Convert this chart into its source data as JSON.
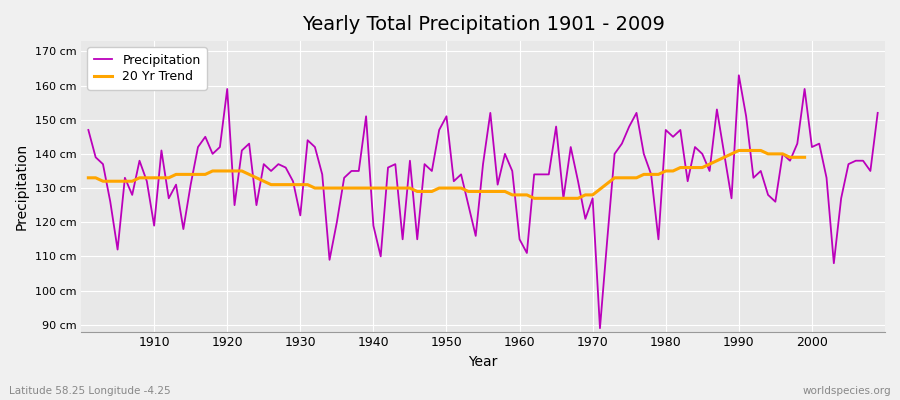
{
  "title": "Yearly Total Precipitation 1901 - 2009",
  "xlabel": "Year",
  "ylabel": "Precipitation",
  "bottom_left_label": "Latitude 58.25 Longitude -4.25",
  "bottom_right_label": "worldspecies.org",
  "background_color": "#f0f0f0",
  "plot_bg_color": "#e8e8e8",
  "precipitation_color": "#bb00bb",
  "trend_color": "#ffa500",
  "ylim": [
    88,
    173
  ],
  "yticks": [
    90,
    100,
    110,
    120,
    130,
    140,
    150,
    160,
    170
  ],
  "ytick_labels": [
    "90 cm",
    "100 cm",
    "110 cm",
    "120 cm",
    "130 cm",
    "140 cm",
    "150 cm",
    "160 cm",
    "170 cm"
  ],
  "xticks": [
    1910,
    1920,
    1930,
    1940,
    1950,
    1960,
    1970,
    1980,
    1990,
    2000
  ],
  "xlim": [
    1900,
    2010
  ],
  "years": [
    1901,
    1902,
    1903,
    1904,
    1905,
    1906,
    1907,
    1908,
    1909,
    1910,
    1911,
    1912,
    1913,
    1914,
    1915,
    1916,
    1917,
    1918,
    1919,
    1920,
    1921,
    1922,
    1923,
    1924,
    1925,
    1926,
    1927,
    1928,
    1929,
    1930,
    1931,
    1932,
    1933,
    1934,
    1935,
    1936,
    1937,
    1938,
    1939,
    1940,
    1941,
    1942,
    1943,
    1944,
    1945,
    1946,
    1947,
    1948,
    1949,
    1950,
    1951,
    1952,
    1953,
    1954,
    1955,
    1956,
    1957,
    1958,
    1959,
    1960,
    1961,
    1962,
    1963,
    1964,
    1965,
    1966,
    1967,
    1968,
    1969,
    1970,
    1971,
    1972,
    1973,
    1974,
    1975,
    1976,
    1977,
    1978,
    1979,
    1980,
    1981,
    1982,
    1983,
    1984,
    1985,
    1986,
    1987,
    1988,
    1989,
    1990,
    1991,
    1992,
    1993,
    1994,
    1995,
    1996,
    1997,
    1998,
    1999,
    2000,
    2001,
    2002,
    2003,
    2004,
    2005,
    2006,
    2007,
    2008,
    2009
  ],
  "precipitation": [
    147,
    139,
    137,
    126,
    112,
    133,
    128,
    138,
    132,
    119,
    141,
    127,
    131,
    118,
    131,
    142,
    145,
    140,
    142,
    159,
    125,
    141,
    143,
    125,
    137,
    135,
    137,
    136,
    132,
    122,
    144,
    142,
    134,
    109,
    120,
    133,
    135,
    135,
    151,
    119,
    110,
    136,
    137,
    115,
    138,
    115,
    137,
    135,
    147,
    151,
    132,
    134,
    125,
    116,
    137,
    152,
    131,
    140,
    135,
    115,
    111,
    134,
    134,
    134,
    148,
    127,
    142,
    132,
    121,
    127,
    89,
    115,
    140,
    143,
    148,
    152,
    140,
    134,
    115,
    147,
    145,
    147,
    132,
    142,
    140,
    135,
    153,
    140,
    127,
    163,
    151,
    133,
    135,
    128,
    126,
    140,
    138,
    143,
    159,
    142,
    143,
    133,
    108,
    127,
    137,
    138,
    138,
    135,
    152
  ],
  "trend": [
    133,
    133,
    132,
    132,
    132,
    132,
    132,
    133,
    133,
    133,
    133,
    133,
    134,
    134,
    134,
    134,
    134,
    135,
    135,
    135,
    135,
    135,
    134,
    133,
    132,
    131,
    131,
    131,
    131,
    131,
    131,
    130,
    130,
    130,
    130,
    130,
    130,
    130,
    130,
    130,
    130,
    130,
    130,
    130,
    130,
    129,
    129,
    129,
    130,
    130,
    130,
    130,
    129,
    129,
    129,
    129,
    129,
    129,
    128,
    128,
    128,
    127,
    127,
    127,
    127,
    127,
    127,
    127,
    128,
    128,
    null,
    null,
    133,
    133,
    133,
    133,
    134,
    134,
    134,
    135,
    135,
    136,
    136,
    136,
    136,
    137,
    138,
    139,
    140,
    141,
    141,
    141,
    141,
    140,
    140,
    140,
    139,
    139,
    139
  ],
  "title_fontsize": 14,
  "axis_label_fontsize": 10,
  "tick_fontsize": 9,
  "ytick_fontsize": 8,
  "legend_fontsize": 9,
  "footer_fontsize": 7.5
}
